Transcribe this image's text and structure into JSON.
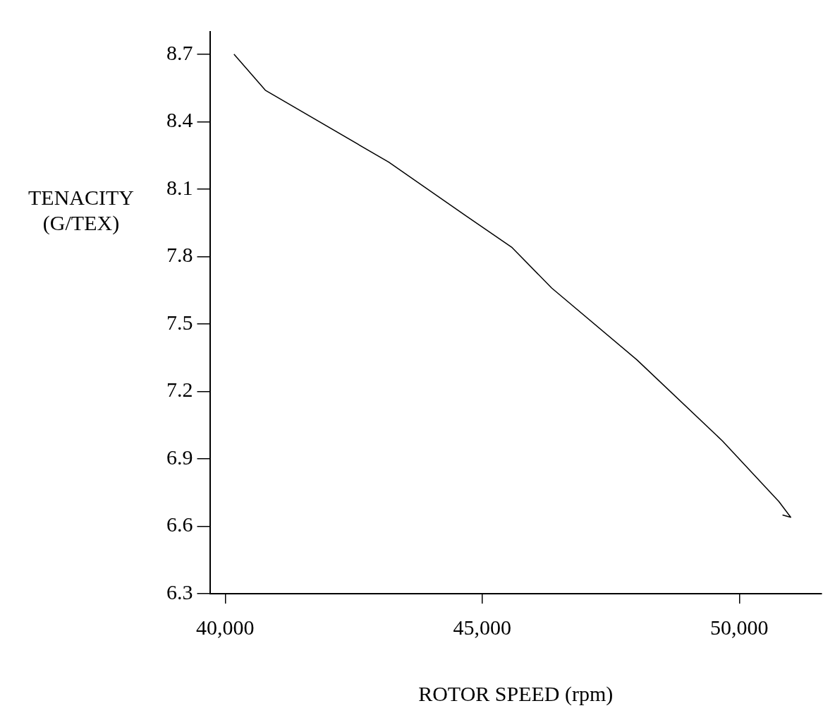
{
  "chart_data": {
    "type": "line",
    "xlabel": "ROTOR SPEED (rpm)",
    "ylabel": "TENACITY\n(G/TEX)",
    "xlim": [
      39700,
      51600
    ],
    "xticks": [
      {
        "value": 40000,
        "label": "40,000"
      },
      {
        "value": 45000,
        "label": "45,000"
      },
      {
        "value": 50000,
        "label": "50,000"
      }
    ],
    "ylim": [
      6.3,
      8.8
    ],
    "yticks": [
      6.3,
      6.6,
      6.9,
      7.2,
      7.5,
      7.8,
      8.1,
      8.4,
      8.7
    ],
    "grid": false,
    "legend": false,
    "marker": "none",
    "line_style": "solid",
    "series": [
      {
        "color": "#000000",
        "x": [
          40170,
          40780,
          43180,
          44690,
          45580,
          46350,
          48010,
          49670,
          50770,
          51000,
          50840
        ],
        "values": [
          8.7,
          8.54,
          8.22,
          7.98,
          7.84,
          7.66,
          7.34,
          6.98,
          6.71,
          6.64,
          6.65
        ]
      }
    ]
  }
}
